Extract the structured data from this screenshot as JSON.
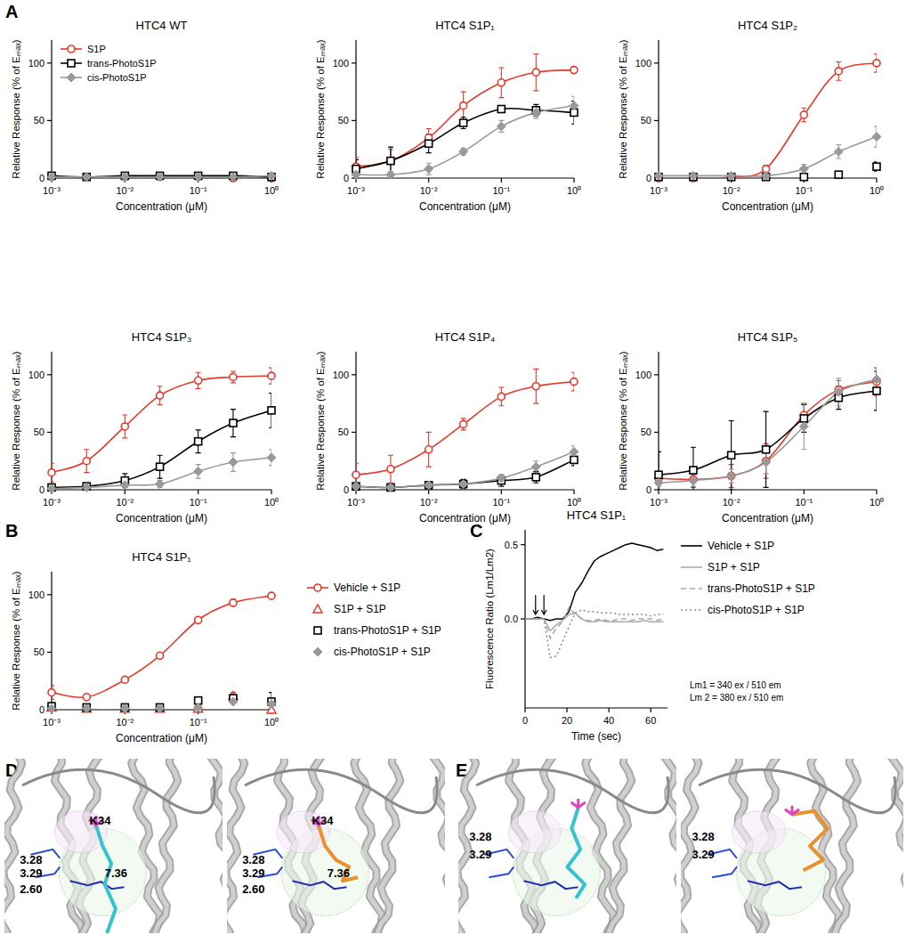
{
  "panel_labels": [
    "A",
    "B",
    "C",
    "D",
    "E"
  ],
  "chart_data": [
    {
      "type": "line",
      "title": "HTC4 WT",
      "x_label": "Concentration (μM)",
      "y_label": "Relative Response (% of Eₘₐₓ)",
      "log": "x",
      "x": [
        0.001,
        0.003,
        0.01,
        0.03,
        0.1,
        0.3,
        1
      ],
      "xlim": [
        0.001,
        1
      ],
      "xticks": [
        {
          "value": 0.001,
          "label": "10⁻³"
        },
        {
          "value": 0.01,
          "label": "10⁻²"
        },
        {
          "value": 0.1,
          "label": "10⁻¹"
        },
        {
          "value": 1,
          "label": "10⁰"
        }
      ],
      "ylim": [
        0,
        120
      ],
      "yticks": [
        0,
        50,
        100
      ],
      "legend": "top-left",
      "series": [
        {
          "name": "S1P",
          "color": "#e6382b",
          "marker": "circle",
          "line_style": "solid",
          "values": [
            1,
            1,
            1,
            1,
            1,
            0,
            0
          ],
          "errors": [
            1,
            1,
            1,
            1,
            1,
            1,
            1
          ]
        },
        {
          "name": "trans-PhotoS1P",
          "color": "#000000",
          "marker": "square",
          "line_style": "solid",
          "values": [
            2,
            1,
            2,
            2,
            2,
            2,
            1
          ],
          "errors": [
            1,
            1,
            1,
            1,
            1,
            1,
            1
          ]
        },
        {
          "name": "cis-PhotoS1P",
          "color": "#999999",
          "marker": "diamond",
          "line_style": "solid",
          "values": [
            1,
            1,
            1,
            1,
            1,
            1,
            2
          ],
          "errors": [
            1,
            1,
            1,
            1,
            1,
            1,
            1
          ]
        }
      ]
    },
    {
      "type": "line",
      "title": "HTC4 S1P₁",
      "x_label": "Concentration (μM)",
      "y_label": "Relative Response (% of Eₘₐₓ)",
      "log": "x",
      "x": [
        0.001,
        0.003,
        0.01,
        0.03,
        0.1,
        0.3,
        1
      ],
      "xlim": [
        0.001,
        1
      ],
      "xticks": [
        {
          "value": 0.001,
          "label": "10⁻³"
        },
        {
          "value": 0.01,
          "label": "10⁻²"
        },
        {
          "value": 0.1,
          "label": "10⁻¹"
        },
        {
          "value": 1,
          "label": "10⁰"
        }
      ],
      "ylim": [
        0,
        120
      ],
      "yticks": [
        0,
        50,
        100
      ],
      "series": [
        {
          "name": "S1P",
          "color": "#e6382b",
          "marker": "circle",
          "line_style": "solid",
          "values": [
            10,
            15,
            35,
            63,
            83,
            92,
            94
          ],
          "errors": [
            8,
            10,
            8,
            12,
            13,
            16,
            3
          ]
        },
        {
          "name": "trans-PhotoS1P",
          "color": "#000000",
          "marker": "square",
          "line_style": "solid",
          "values": [
            8,
            15,
            30,
            48,
            60,
            59,
            57
          ],
          "errors": [
            8,
            12,
            8,
            5,
            3,
            5,
            10
          ]
        },
        {
          "name": "cis-PhotoS1P",
          "color": "#999999",
          "marker": "diamond",
          "line_style": "solid",
          "values": [
            3,
            3,
            8,
            23,
            45,
            57,
            63
          ],
          "errors": [
            3,
            3,
            5,
            3,
            5,
            5,
            8
          ]
        }
      ]
    },
    {
      "type": "line",
      "title": "HTC4 S1P₂",
      "x_label": "Concentration (μM)",
      "y_label": "Relative Response (% of Eₘₐₓ)",
      "log": "x",
      "x": [
        0.001,
        0.003,
        0.01,
        0.03,
        0.1,
        0.3,
        1
      ],
      "xlim": [
        0.001,
        1
      ],
      "xticks": [
        {
          "value": 0.001,
          "label": "10⁻³"
        },
        {
          "value": 0.01,
          "label": "10⁻²"
        },
        {
          "value": 0.1,
          "label": "10⁻¹"
        },
        {
          "value": 1,
          "label": "10⁰"
        }
      ],
      "ylim": [
        0,
        120
      ],
      "yticks": [
        0,
        50,
        100
      ],
      "series": [
        {
          "name": "S1P",
          "color": "#e6382b",
          "marker": "circle",
          "line_style": "solid",
          "values": [
            0,
            0,
            1,
            8,
            55,
            93,
            100
          ],
          "errors": [
            1,
            1,
            1,
            3,
            6,
            8,
            8
          ]
        },
        {
          "name": "trans-PhotoS1P",
          "color": "#000000",
          "marker": "square",
          "line_style": "none",
          "values": [
            1,
            1,
            1,
            1,
            1,
            3,
            10
          ],
          "errors": [
            1,
            1,
            1,
            1,
            1,
            2,
            4
          ]
        },
        {
          "name": "cis-PhotoS1P",
          "color": "#999999",
          "marker": "diamond",
          "line_style": "solid",
          "values": [
            2,
            2,
            2,
            2,
            8,
            23,
            36
          ],
          "errors": [
            1,
            1,
            1,
            2,
            4,
            6,
            9
          ]
        }
      ]
    },
    {
      "type": "line",
      "title": "HTC4 S1P₃",
      "x_label": "Concentration (μM)",
      "y_label": "Relative Response (% of Eₘₐₓ)",
      "log": "x",
      "x": [
        0.001,
        0.003,
        0.01,
        0.03,
        0.1,
        0.3,
        1
      ],
      "xlim": [
        0.001,
        1
      ],
      "xticks": [
        {
          "value": 0.001,
          "label": "10⁻³"
        },
        {
          "value": 0.01,
          "label": "10⁻²"
        },
        {
          "value": 0.1,
          "label": "10⁻¹"
        },
        {
          "value": 1,
          "label": "10⁰"
        }
      ],
      "ylim": [
        0,
        120
      ],
      "yticks": [
        0,
        50,
        100
      ],
      "series": [
        {
          "name": "S1P",
          "color": "#e6382b",
          "marker": "circle",
          "line_style": "solid",
          "values": [
            15,
            25,
            55,
            82,
            95,
            98,
            99
          ],
          "errors": [
            8,
            10,
            10,
            8,
            7,
            5,
            7
          ]
        },
        {
          "name": "trans-PhotoS1P",
          "color": "#000000",
          "marker": "square",
          "line_style": "solid",
          "values": [
            2,
            3,
            8,
            20,
            42,
            58,
            69
          ],
          "errors": [
            1,
            2,
            6,
            10,
            10,
            12,
            15
          ]
        },
        {
          "name": "cis-PhotoS1P",
          "color": "#999999",
          "marker": "diamond",
          "line_style": "solid",
          "values": [
            1,
            2,
            4,
            5,
            16,
            24,
            28
          ],
          "errors": [
            1,
            1,
            2,
            3,
            6,
            8,
            7
          ]
        }
      ]
    },
    {
      "type": "line",
      "title": "HTC4 S1P₄",
      "x_label": "Concentration (μM)",
      "y_label": "Relative Response (% of Eₘₐₓ)",
      "log": "x",
      "x": [
        0.001,
        0.003,
        0.01,
        0.03,
        0.1,
        0.3,
        1
      ],
      "xlim": [
        0.001,
        1
      ],
      "xticks": [
        {
          "value": 0.001,
          "label": "10⁻³"
        },
        {
          "value": 0.01,
          "label": "10⁻²"
        },
        {
          "value": 0.1,
          "label": "10⁻¹"
        },
        {
          "value": 1,
          "label": "10⁰"
        }
      ],
      "ylim": [
        0,
        120
      ],
      "yticks": [
        0,
        50,
        100
      ],
      "series": [
        {
          "name": "S1P",
          "color": "#e6382b",
          "marker": "circle",
          "line_style": "solid",
          "values": [
            13,
            18,
            35,
            57,
            81,
            90,
            94
          ],
          "errors": [
            10,
            12,
            15,
            5,
            8,
            15,
            8
          ]
        },
        {
          "name": "trans-PhotoS1P",
          "color": "#000000",
          "marker": "square",
          "line_style": "solid",
          "values": [
            3,
            2,
            4,
            5,
            8,
            11,
            26
          ],
          "errors": [
            2,
            2,
            2,
            4,
            5,
            5,
            5
          ]
        },
        {
          "name": "cis-PhotoS1P",
          "color": "#999999",
          "marker": "diamond",
          "line_style": "solid",
          "values": [
            3,
            2,
            4,
            5,
            10,
            20,
            33
          ],
          "errors": [
            1,
            1,
            2,
            2,
            3,
            5,
            5
          ]
        }
      ]
    },
    {
      "type": "line",
      "title": "HTC4 S1P₅",
      "x_label": "Concentration (μM)",
      "y_label": "Relative Response (% of Eₘₐₓ)",
      "log": "x",
      "x": [
        0.001,
        0.003,
        0.01,
        0.03,
        0.1,
        0.3,
        1
      ],
      "xlim": [
        0.001,
        1
      ],
      "xticks": [
        {
          "value": 0.001,
          "label": "10⁻³"
        },
        {
          "value": 0.01,
          "label": "10⁻²"
        },
        {
          "value": 0.1,
          "label": "10⁻¹"
        },
        {
          "value": 1,
          "label": "10⁰"
        }
      ],
      "ylim": [
        0,
        120
      ],
      "yticks": [
        0,
        50,
        100
      ],
      "series": [
        {
          "name": "S1P",
          "color": "#e6382b",
          "marker": "circle",
          "line_style": "solid",
          "values": [
            10,
            9,
            12,
            25,
            65,
            87,
            94
          ],
          "errors": [
            5,
            7,
            10,
            15,
            10,
            8,
            12
          ]
        },
        {
          "name": "trans-PhotoS1P",
          "color": "#000000",
          "marker": "square",
          "line_style": "solid",
          "values": [
            13,
            17,
            30,
            35,
            62,
            80,
            86
          ],
          "errors": [
            20,
            20,
            30,
            33,
            12,
            10,
            17
          ]
        },
        {
          "name": "cis-PhotoS1P",
          "color": "#999999",
          "marker": "diamond",
          "line_style": "solid",
          "values": [
            6,
            8,
            12,
            24,
            55,
            85,
            96
          ],
          "errors": [
            3,
            5,
            6,
            10,
            20,
            12,
            10
          ]
        }
      ]
    },
    {
      "type": "line",
      "title": "HTC4 S1P₁",
      "x_label": "Concentration (μM)",
      "y_label": "Relative Response (% of Eₘₐₓ)",
      "log": "x",
      "x": [
        0.001,
        0.003,
        0.01,
        0.03,
        0.1,
        0.3,
        1
      ],
      "xlim": [
        0.001,
        1
      ],
      "xticks": [
        {
          "value": 0.001,
          "label": "10⁻³"
        },
        {
          "value": 0.01,
          "label": "10⁻²"
        },
        {
          "value": 0.1,
          "label": "10⁻¹"
        },
        {
          "value": 1,
          "label": "10⁰"
        }
      ],
      "ylim": [
        0,
        120
      ],
      "yticks": [
        0,
        50,
        100
      ],
      "legend": "right",
      "series": [
        {
          "name": "Vehicle + S1P",
          "color": "#e6382b",
          "marker": "circle",
          "line_style": "solid",
          "values": [
            15,
            11,
            26,
            47,
            78,
            93,
            99
          ],
          "errors": [
            6,
            2,
            2,
            2,
            2,
            3,
            1
          ]
        },
        {
          "name": "S1P + S1P",
          "color": "#e6382b",
          "marker": "triangle",
          "line_style": "none",
          "values": [
            2,
            1,
            1,
            1,
            1,
            12,
            0
          ],
          "errors": [
            1,
            1,
            1,
            2,
            2,
            3,
            1
          ]
        },
        {
          "name": "trans-PhotoS1P + S1P",
          "color": "#000000",
          "marker": "square",
          "line_style": "none",
          "values": [
            3,
            2,
            2,
            2,
            8,
            10,
            7
          ],
          "errors": [
            2,
            2,
            1,
            1,
            2,
            3,
            8
          ]
        },
        {
          "name": "cis-PhotoS1P + S1P",
          "color": "#999999",
          "marker": "diamond",
          "line_style": "none",
          "values": [
            1,
            1,
            1,
            1,
            2,
            7,
            5
          ],
          "errors": [
            1,
            1,
            1,
            1,
            2,
            2,
            2
          ]
        }
      ]
    },
    {
      "type": "line",
      "title": "HTC4 S1P₁",
      "x_label": "Time (sec)",
      "y_label": "Fluorescence Ratio (Lm1/Lm2)",
      "x": [
        0,
        3,
        6,
        9,
        12,
        15,
        18,
        21,
        24,
        27,
        30,
        33,
        36,
        39,
        42,
        45,
        48,
        51,
        54,
        57,
        60,
        63,
        66
      ],
      "xlim": [
        0,
        68
      ],
      "xticks": [
        0,
        20,
        40,
        60
      ],
      "ylim": [
        -0.6,
        0.6
      ],
      "yticks": [
        {
          "value": 0,
          "label": "0.0"
        },
        {
          "value": 0.5,
          "label": "0.5"
        }
      ],
      "legend": "right",
      "arrows": [
        5,
        9
      ],
      "annotations": [
        "Lm1 = 340 ex / 510 em",
        "Lm 2 = 380 ex / 510 em"
      ],
      "series": [
        {
          "name": "Vehicle + S1P",
          "color": "#000000",
          "marker": "none",
          "line_style": "solid",
          "values": [
            0,
            0,
            0.01,
            0,
            -0.01,
            0,
            0,
            0.05,
            0.18,
            0.24,
            0.32,
            0.39,
            0.42,
            0.44,
            0.46,
            0.48,
            0.5,
            0.51,
            0.5,
            0.49,
            0.48,
            0.46,
            0.47
          ]
        },
        {
          "name": "S1P + S1P",
          "color": "#aaaaaa",
          "marker": "none",
          "line_style": "solid",
          "values": [
            0,
            0,
            0,
            0,
            -0.08,
            -0.04,
            -0.01,
            0.03,
            0.04,
            0,
            -0.02,
            -0.02,
            -0.01,
            -0.02,
            -0.02,
            -0.02,
            -0.02,
            -0.02,
            -0.02,
            -0.01,
            -0.02,
            -0.02,
            -0.02
          ]
        },
        {
          "name": "trans-PhotoS1P + S1P",
          "color": "#aaaaaa",
          "marker": "none",
          "line_style": "dashed",
          "values": [
            0,
            0,
            0,
            0,
            -0.13,
            -0.06,
            -0.02,
            0.08,
            0.03,
            0,
            -0.01,
            -0.01,
            0,
            -0.01,
            -0.01,
            0,
            0,
            -0.01,
            0,
            0,
            0,
            -0.01,
            0
          ]
        },
        {
          "name": "cis-PhotoS1P + S1P",
          "color": "#888888",
          "marker": "none",
          "line_style": "dotted",
          "values": [
            0,
            0,
            0,
            0,
            -0.26,
            -0.25,
            -0.15,
            -0.05,
            0.04,
            0.06,
            0.05,
            0.05,
            0.04,
            0.04,
            0.04,
            0.03,
            0.03,
            0.03,
            0.03,
            0.03,
            0.02,
            0.03,
            0.03
          ]
        }
      ]
    }
  ],
  "structures": [
    {
      "images": [
        {
          "ligand_color": "#36c3cf",
          "labels": [
            "K34",
            "3.28",
            "3.29",
            "2.60",
            "7.36"
          ]
        },
        {
          "ligand_color": "#e8922f",
          "labels": [
            "K34",
            "3.28",
            "3.29",
            "2.60",
            "7.36"
          ]
        }
      ]
    },
    {
      "images": [
        {
          "ligand_color": "#36c3cf",
          "labels": [
            "3.28",
            "3.29"
          ]
        },
        {
          "ligand_color": "#e8922f",
          "labels": [
            "3.28",
            "3.29"
          ]
        }
      ]
    }
  ]
}
